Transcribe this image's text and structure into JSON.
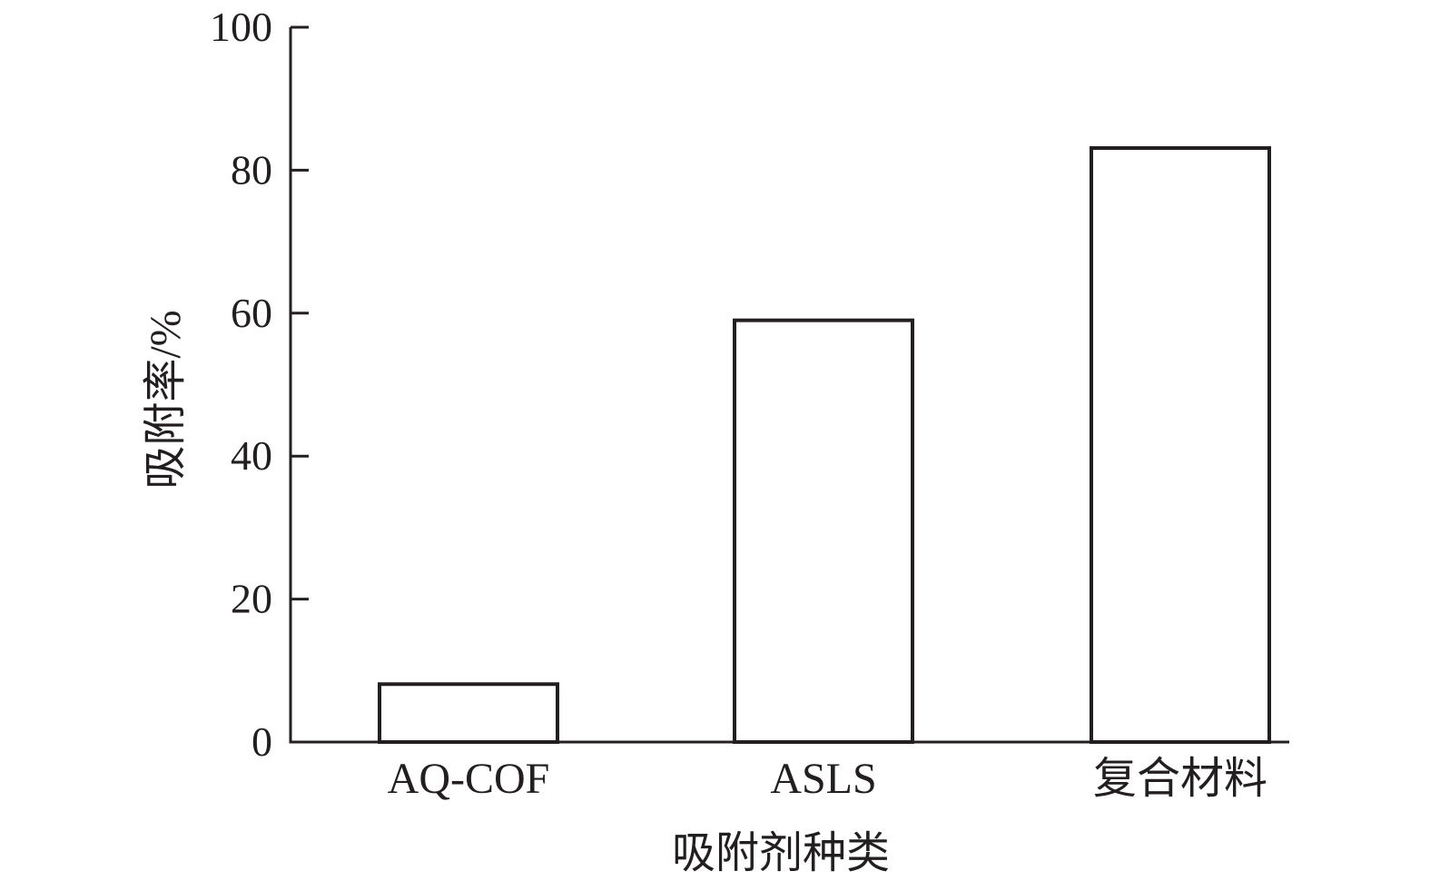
{
  "chart_data": {
    "type": "bar",
    "categories": [
      "AQ-COF",
      "ASLS",
      "复合材料"
    ],
    "values": [
      8.1,
      59.0,
      83.1
    ],
    "title": "",
    "xlabel": "吸附剂种类",
    "ylabel": "吸附率/%",
    "ylim": [
      0,
      100
    ],
    "yticks": [
      0,
      20,
      40,
      60,
      80,
      100
    ],
    "grid": false,
    "bar_fill": "#ffffff",
    "stroke_color": "#231f20"
  }
}
